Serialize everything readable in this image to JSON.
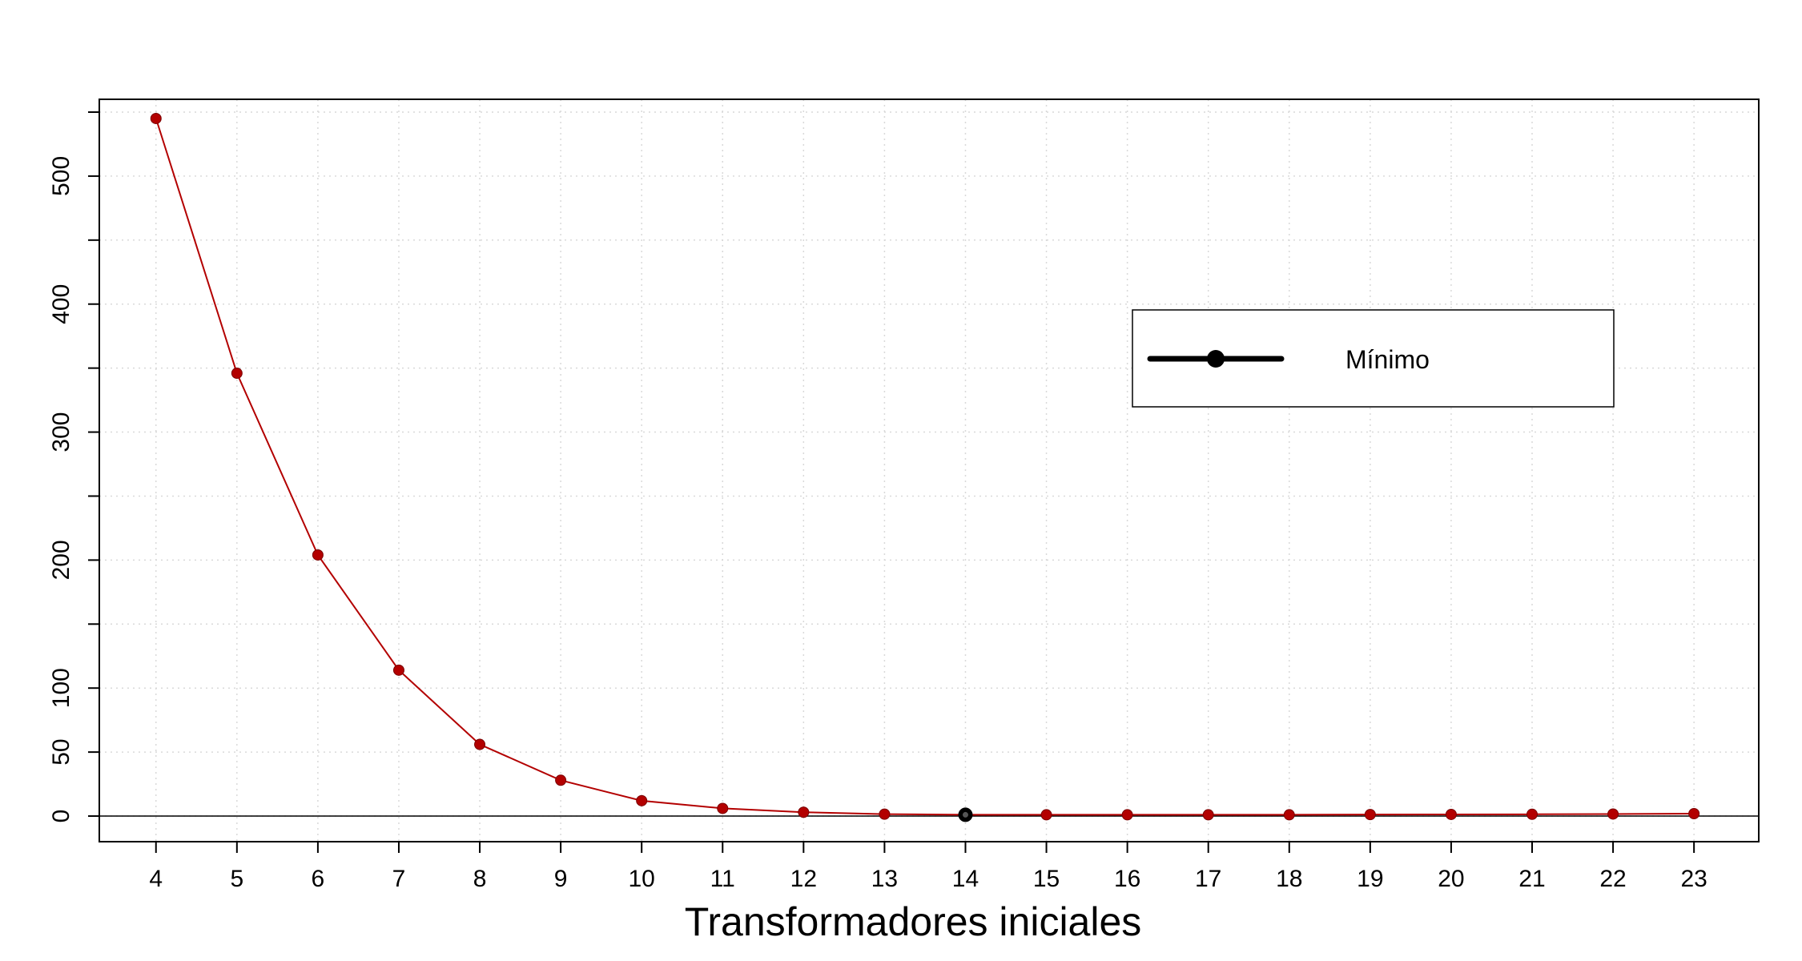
{
  "chart_data": {
    "type": "line",
    "title": "",
    "xlabel": "Transformadores iniciales",
    "ylabel": "",
    "x": [
      4,
      5,
      6,
      7,
      8,
      9,
      10,
      11,
      12,
      13,
      14,
      15,
      16,
      17,
      18,
      19,
      20,
      21,
      22,
      23
    ],
    "series": [
      {
        "values": [
          545,
          346,
          204,
          114,
          56,
          28,
          12,
          6,
          3,
          1.5,
          1,
          1,
          1,
          1,
          1,
          1.2,
          1.3,
          1.4,
          1.6,
          1.9
        ],
        "color": "#b30000"
      }
    ],
    "minimum": {
      "x": 14,
      "y": 1,
      "color": "#000000"
    },
    "xlim": [
      3.3,
      23.8
    ],
    "ylim": [
      -20,
      560
    ],
    "xticks": [
      "4",
      "5",
      "6",
      "7",
      "8",
      "9",
      "10",
      "11",
      "12",
      "13",
      "14",
      "15",
      "16",
      "17",
      "18",
      "19",
      "20",
      "21",
      "22",
      "23"
    ],
    "yticks_labeled": [
      "0",
      "50",
      "100",
      "200",
      "300",
      "400",
      "500"
    ],
    "yticks_minor": [
      150,
      250,
      350,
      450,
      550
    ],
    "grid": true,
    "reference_line": 0,
    "legend": {
      "label": "Mínimo",
      "placement": "top-right"
    }
  }
}
